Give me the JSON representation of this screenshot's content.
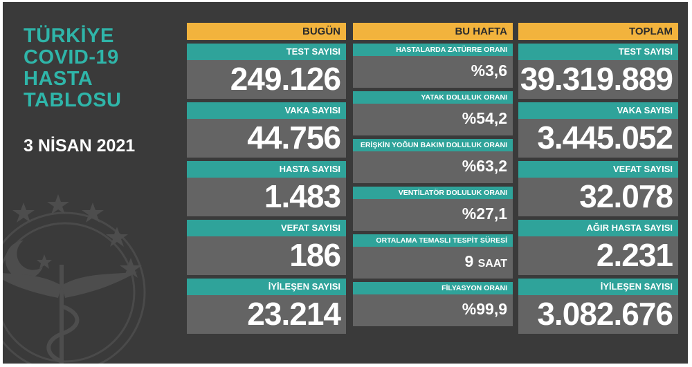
{
  "title_lines": [
    "TÜRKİYE",
    "COVID-19",
    "HASTA",
    "TABLOSU"
  ],
  "date": "3 NİSAN 2021",
  "columns": {
    "today": {
      "header": "BUGÜN",
      "cards": [
        {
          "label": "TEST SAYISI",
          "value": "249.126"
        },
        {
          "label": "VAKA SAYISI",
          "value": "44.756"
        },
        {
          "label": "HASTA SAYISI",
          "value": "1.483"
        },
        {
          "label": "VEFAT SAYISI",
          "value": "186"
        },
        {
          "label": "İYİLEŞEN SAYISI",
          "value": "23.214"
        }
      ]
    },
    "week": {
      "header": "BU HAFTA",
      "cards": [
        {
          "label": "HASTALARDA ZATÜRRE ORANI",
          "value": "%3,6"
        },
        {
          "label": "YATAK DOLULUK ORANI",
          "value": "%54,2"
        },
        {
          "label": "ERİŞKİN YOĞUN BAKIM DOLULUK ORANI",
          "value": "%63,2"
        },
        {
          "label": "VENTİLATÖR DOLULUK ORANI",
          "value": "%27,1"
        },
        {
          "label": "ORTALAMA TEMASLI TESPİT SÜRESİ",
          "value": "9",
          "unit": "SAAT"
        },
        {
          "label": "FİLYASYON ORANI",
          "value": "%99,9"
        }
      ]
    },
    "total": {
      "header": "TOPLAM",
      "cards": [
        {
          "label": "TEST SAYISI",
          "value": "39.319.889"
        },
        {
          "label": "VAKA SAYISI",
          "value": "3.445.052"
        },
        {
          "label": "VEFAT SAYISI",
          "value": "32.078"
        },
        {
          "label": "AĞIR HASTA SAYISI",
          "value": "2.231"
        },
        {
          "label": "İYİLEŞEN SAYISI",
          "value": "3.082.676"
        }
      ]
    }
  },
  "colors": {
    "background": "#3a3a3a",
    "header": "#f2b33d",
    "label": "#2fa39a",
    "card": "#646464",
    "title": "#2fb5a9"
  },
  "icons": {
    "emblem": "ministry-of-health-emblem-icon"
  }
}
